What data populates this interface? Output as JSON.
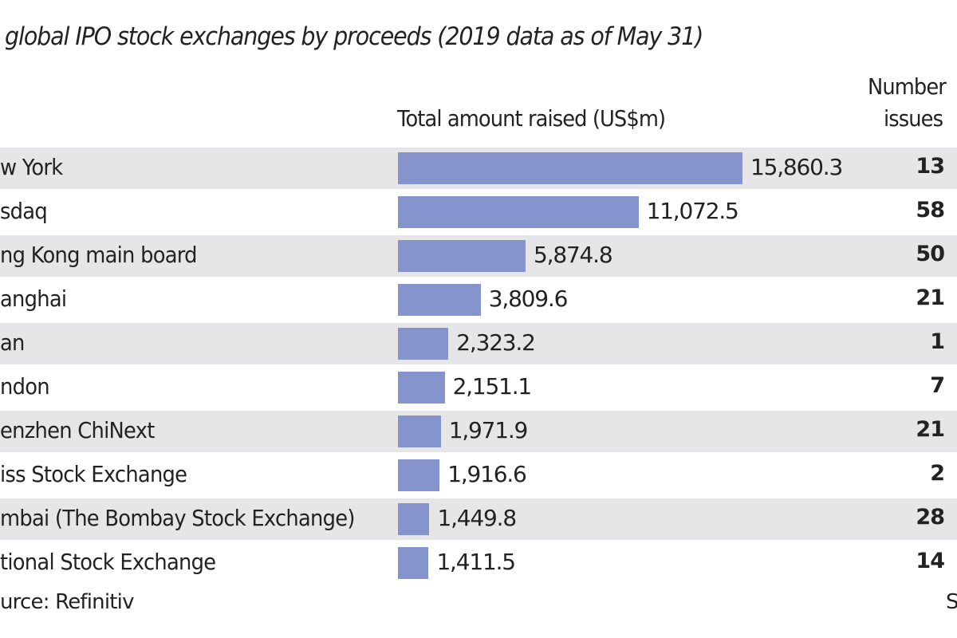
{
  "chart_data": {
    "type": "bar",
    "orientation": "horizontal",
    "title": "global IPO stock exchanges by proceeds (2019 data as of May 31)",
    "value_header": "Total amount raised (US$m)",
    "count_header": [
      "Number",
      "issues"
    ],
    "categories": [
      "w York",
      "sdaq",
      "ng Kong main board",
      "anghai",
      "an",
      "ndon",
      "enzhen ChiNext",
      "iss Stock Exchange",
      "mbai (The Bombay Stock Exchange)",
      "tional Stock Exchange"
    ],
    "values": [
      15860.3,
      11072.5,
      5874.8,
      3809.6,
      2323.2,
      2151.1,
      1971.9,
      1916.6,
      1449.8,
      1411.5
    ],
    "value_labels": [
      "15,860.3",
      "11,072.5",
      "5,874.8",
      "3,809.6",
      "2,323.2",
      "2,151.1",
      "1,971.9",
      "1,916.6",
      "1,449.8",
      "1,411.5"
    ],
    "issues": [
      "13",
      "58",
      "50",
      "21",
      "1",
      "7",
      "21",
      "2",
      "28",
      "14"
    ],
    "bar_color": "#8594cc",
    "row_shade_color": "#e6e6e8",
    "grid": false
  },
  "footer": {
    "source": "urce: Refinitiv",
    "right": "S"
  }
}
